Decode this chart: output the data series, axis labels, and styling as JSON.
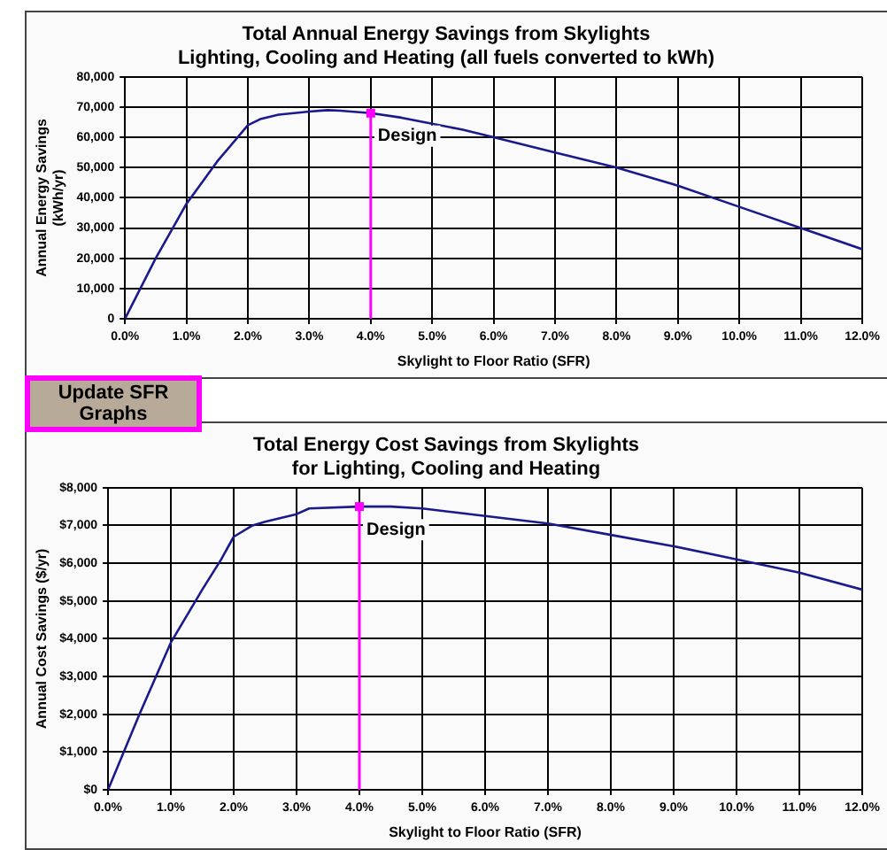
{
  "chart_data": [
    {
      "type": "line",
      "title": "Total Annual Energy Savings from Skylights\nLighting, Cooling and Heating (all fuels converted to kWh)",
      "xlabel": "Skylight to Floor Ratio (SFR)",
      "ylabel": "Annual Energy Savings\n(kWh/yr)",
      "x": [
        0,
        0.5,
        1.0,
        1.5,
        2.0,
        2.2,
        2.5,
        3.0,
        3.3,
        3.5,
        4.0,
        4.5,
        5.0,
        5.5,
        6.0,
        7.0,
        8.0,
        9.0,
        10.0,
        11.0,
        12.0
      ],
      "series": [
        {
          "color": "#1a1a8c",
          "values": [
            0,
            20000,
            38000,
            52000,
            64000,
            66000,
            67500,
            68500,
            69000,
            68800,
            68000,
            66500,
            64500,
            62500,
            60000,
            55000,
            50000,
            44000,
            37000,
            30000,
            23000
          ]
        }
      ],
      "xlim": [
        0,
        12
      ],
      "xticks": [
        {
          "value": 0,
          "label": "0.0%"
        },
        {
          "value": 1,
          "label": "1.0%"
        },
        {
          "value": 2,
          "label": "2.0%"
        },
        {
          "value": 3,
          "label": "3.0%"
        },
        {
          "value": 4,
          "label": "4.0%"
        },
        {
          "value": 5,
          "label": "5.0%"
        },
        {
          "value": 6,
          "label": "6.0%"
        },
        {
          "value": 7,
          "label": "7.0%"
        },
        {
          "value": 8,
          "label": "8.0%"
        },
        {
          "value": 9,
          "label": "9.0%"
        },
        {
          "value": 10,
          "label": "10.0%"
        },
        {
          "value": 11,
          "label": "11.0%"
        },
        {
          "value": 12,
          "label": "12.0%"
        }
      ],
      "ylim": [
        0,
        80000
      ],
      "yticks": [
        0,
        {
          "value": 10000,
          "label": "10,000"
        },
        {
          "value": 20000,
          "label": "20,000"
        },
        {
          "value": 30000,
          "label": "30,000"
        },
        {
          "value": 40000,
          "label": "40,000"
        },
        {
          "value": 50000,
          "label": "50,000"
        },
        {
          "value": 60000,
          "label": "60,000"
        },
        {
          "value": 70000,
          "label": "70,000"
        },
        {
          "value": 80000,
          "label": "80,000"
        }
      ],
      "ref_lines": [
        {
          "axis": "x",
          "value": 4,
          "label": "Design",
          "color": "#ff00ff"
        }
      ],
      "annotations": [
        "Update SFR Graphs"
      ],
      "grid": true,
      "marker": "none",
      "legend": false
    },
    {
      "type": "line",
      "title": "Total Energy Cost Savings from Skylights\nfor Lighting, Cooling and Heating",
      "xlabel": "Skylight to Floor Ratio (SFR)",
      "ylabel": "Annual Cost Savings ($/yr)",
      "x": [
        0,
        0.5,
        1.0,
        1.5,
        1.8,
        2.0,
        2.3,
        2.5,
        3.0,
        3.2,
        4.0,
        4.5,
        5.0,
        5.5,
        6.0,
        7.0,
        8.0,
        9.0,
        10.0,
        11.0,
        12.0
      ],
      "series": [
        {
          "color": "#1a1a8c",
          "values": [
            0,
            2000,
            3900,
            5300,
            6100,
            6700,
            7000,
            7100,
            7300,
            7450,
            7500,
            7500,
            7450,
            7350,
            7250,
            7050,
            6750,
            6450,
            6100,
            5750,
            5300
          ]
        }
      ],
      "xlim": [
        0,
        12
      ],
      "xticks": [
        {
          "value": 0,
          "label": "0.0%"
        },
        {
          "value": 1,
          "label": "1.0%"
        },
        {
          "value": 2,
          "label": "2.0%"
        },
        {
          "value": 3,
          "label": "3.0%"
        },
        {
          "value": 4,
          "label": "4.0%"
        },
        {
          "value": 5,
          "label": "5.0%"
        },
        {
          "value": 6,
          "label": "6.0%"
        },
        {
          "value": 7,
          "label": "7.0%"
        },
        {
          "value": 8,
          "label": "8.0%"
        },
        {
          "value": 9,
          "label": "9.0%"
        },
        {
          "value": 10,
          "label": "10.0%"
        },
        {
          "value": 11,
          "label": "11.0%"
        },
        {
          "value": 12,
          "label": "12.0%"
        }
      ],
      "ylim": [
        0,
        8000
      ],
      "yticks": [
        {
          "value": 0,
          "label": "$0"
        },
        {
          "value": 1000,
          "label": "$1,000"
        },
        {
          "value": 2000,
          "label": "$2,000"
        },
        {
          "value": 3000,
          "label": "$3,000"
        },
        {
          "value": 4000,
          "label": "$4,000"
        },
        {
          "value": 5000,
          "label": "$5,000"
        },
        {
          "value": 6000,
          "label": "$6,000"
        },
        {
          "value": 7000,
          "label": "$7,000"
        },
        {
          "value": 8000,
          "label": "$8,000"
        }
      ],
      "ref_lines": [
        {
          "axis": "x",
          "value": 4,
          "label": "Design",
          "color": "#ff00ff"
        }
      ],
      "grid": true,
      "marker": "none",
      "legend": false
    }
  ]
}
